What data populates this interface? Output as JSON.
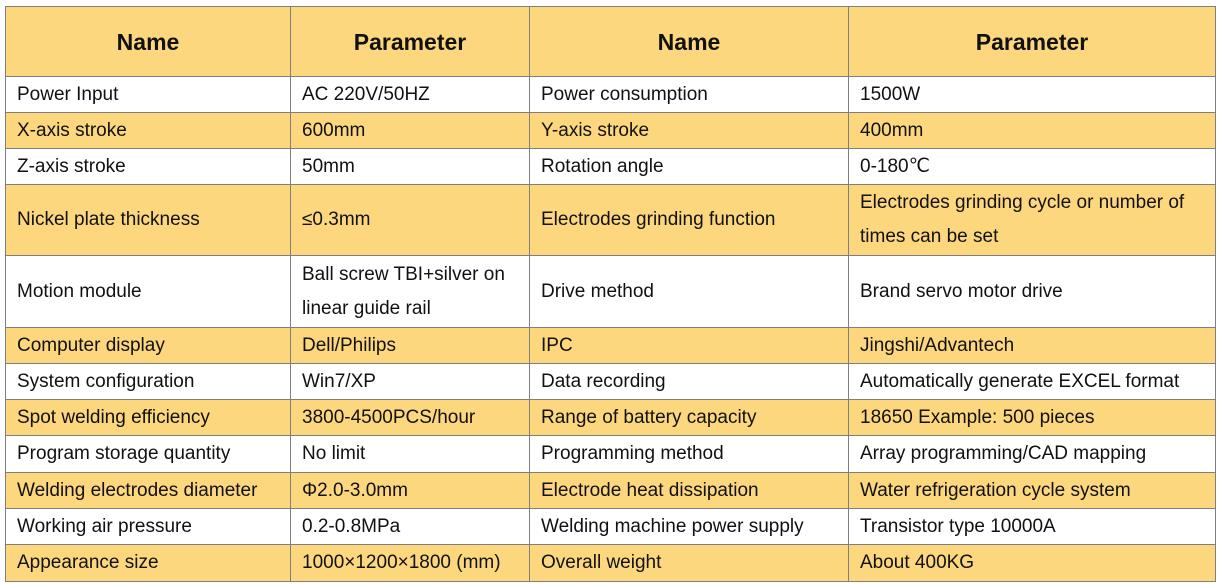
{
  "colors": {
    "highlight": "#fdd77d",
    "plain": "#ffffff",
    "border": "#7f7f7f"
  },
  "table": {
    "headers": [
      "Name",
      "Parameter",
      "Name",
      "Parameter"
    ],
    "rows": [
      [
        "Power Input",
        "AC 220V/50HZ",
        "Power consumption",
        "1500W"
      ],
      [
        "X-axis stroke",
        "600mm",
        "Y-axis stroke",
        "400mm"
      ],
      [
        "Z-axis stroke",
        "50mm",
        "Rotation angle",
        "0-180℃"
      ],
      [
        "Nickel plate thickness",
        "≤0.3mm",
        "Electrodes grinding function",
        "Electrodes grinding cycle or number of times can be set"
      ],
      [
        "Motion module",
        "Ball screw TBI+silver on linear guide rail",
        "Drive method",
        "Brand servo motor drive"
      ],
      [
        "Computer display",
        "Dell/Philips",
        "IPC",
        "Jingshi/Advantech"
      ],
      [
        "System configuration",
        "Win7/XP",
        "Data recording",
        "Automatically generate EXCEL format"
      ],
      [
        "Spot welding efficiency",
        "3800-4500PCS/hour",
        "Range of battery capacity",
        "18650 Example: 500 pieces"
      ],
      [
        "Program storage quantity",
        "No limit",
        "Programming method",
        "Array programming/CAD mapping"
      ],
      [
        "Welding electrodes diameter",
        "Φ2.0-3.0mm",
        "Electrode heat dissipation",
        "Water refrigeration cycle system"
      ],
      [
        "Working air pressure",
        "0.2-0.8MPa",
        "Welding machine power supply",
        "Transistor type 10000A"
      ],
      [
        "Appearance size",
        "1000×1200×1800 (mm)",
        "Overall weight",
        "About 400KG"
      ]
    ]
  }
}
